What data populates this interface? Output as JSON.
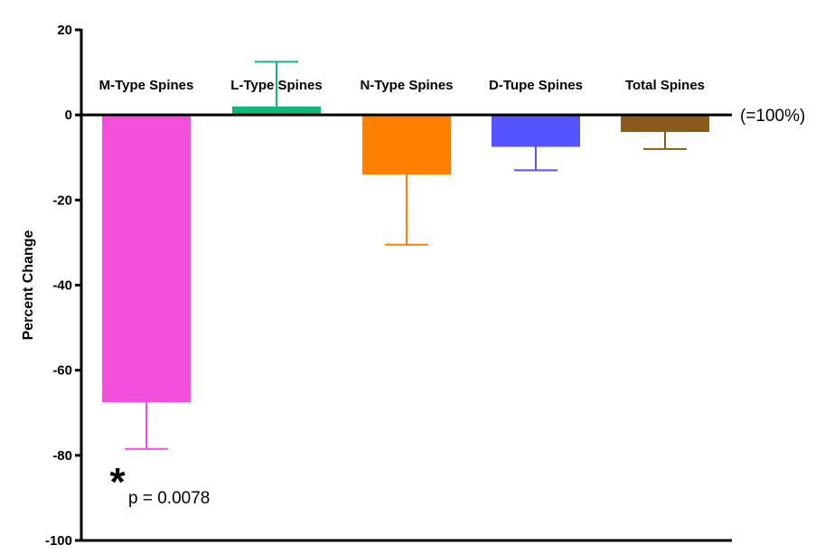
{
  "chart_data": {
    "type": "bar",
    "title": "",
    "xlabel": "",
    "ylabel": "Percent Change",
    "ylim": [
      -100,
      20
    ],
    "yticks": [
      20,
      0,
      -20,
      -40,
      -60,
      -80,
      -100
    ],
    "reference_label": "(=100%)",
    "categories": [
      "M-Type Spines",
      "L-Type Spines",
      "N-Type Spines",
      "D-Tupe Spines",
      "Total Spines"
    ],
    "values": [
      -67.5,
      2.0,
      -14.0,
      -7.5,
      -4.0
    ],
    "error_ends": [
      -78.5,
      12.5,
      -30.5,
      -13.0,
      -8.0
    ],
    "colors": [
      "#f24fdb",
      "#12b87a",
      "#ff8000",
      "#5555ff",
      "#8b5a1a"
    ],
    "annotation": {
      "category_index": 0,
      "marker": "*",
      "text": "p = 0.0078"
    }
  }
}
